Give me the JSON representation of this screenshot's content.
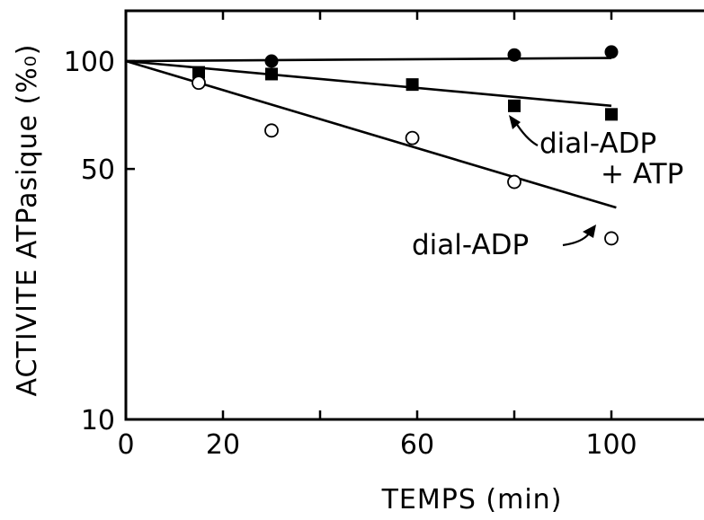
{
  "chart_data": {
    "type": "scatter",
    "title": "",
    "xlabel": "TEMPS (min)",
    "ylabel": "ACTIVITE ATPasique (%₀)",
    "xlim": [
      0,
      115
    ],
    "ylim": [
      10,
      140
    ],
    "yscale": "log",
    "grid": false,
    "x_ticks": [
      0,
      20,
      40,
      60,
      80,
      100
    ],
    "x_tick_labels": [
      "0",
      "20",
      "",
      "60",
      "",
      "100"
    ],
    "y_ticks": [
      10,
      50,
      100
    ],
    "y_tick_labels": [
      "10",
      "50",
      "100"
    ],
    "series": [
      {
        "marker": "filled-circle",
        "points": [
          [
            0,
            100
          ],
          [
            30,
            100
          ],
          [
            80,
            104
          ],
          [
            100,
            106
          ]
        ],
        "fit": [
          [
            0,
            100
          ],
          [
            100,
            102
          ]
        ]
      },
      {
        "marker": "filled-square",
        "points": [
          [
            0,
            100
          ],
          [
            15,
            93
          ],
          [
            30,
            92
          ],
          [
            59,
            86
          ],
          [
            80,
            75
          ],
          [
            100,
            71
          ]
        ],
        "fit": [
          [
            0,
            100
          ],
          [
            100,
            75
          ]
        ]
      },
      {
        "marker": "open-circle",
        "points": [
          [
            0,
            100
          ],
          [
            15,
            87
          ],
          [
            30,
            64
          ],
          [
            59,
            61
          ],
          [
            80,
            46
          ],
          [
            100,
            32
          ]
        ],
        "fit": [
          [
            0,
            100
          ],
          [
            101,
            39
          ]
        ]
      }
    ],
    "annotations": [
      {
        "lines": [
          "dial-ADP",
          "+ ATP"
        ],
        "points_to": [
          78,
          70
        ]
      },
      {
        "lines": [
          "dial-ADP"
        ],
        "points_to": [
          101,
          39
        ]
      }
    ]
  }
}
